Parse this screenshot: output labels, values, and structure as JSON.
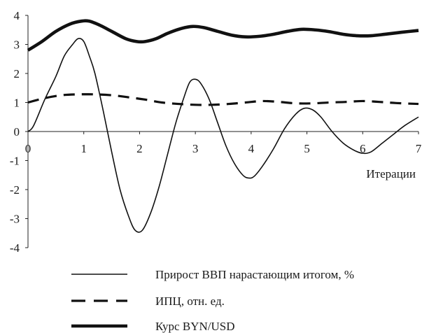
{
  "chart_data": {
    "type": "line",
    "title": "",
    "xlabel": "Итерации",
    "ylabel": "",
    "xlim": [
      0,
      7
    ],
    "ylim": [
      -4,
      4
    ],
    "x_ticks": [
      "0",
      "1",
      "2",
      "3",
      "4",
      "5",
      "6",
      "7"
    ],
    "y_ticks": [
      "4",
      "3",
      "2",
      "1",
      "0",
      "-1",
      "-2",
      "-3",
      "-4"
    ],
    "grid": false,
    "legend_position": "bottom",
    "series": [
      {
        "name": "Прирост ВВП нарастающим итогом, %",
        "style": "thin-solid",
        "color": "#111111",
        "x": [
          0,
          0.1,
          0.3,
          0.5,
          0.65,
          0.8,
          0.9,
          1.0,
          1.1,
          1.2,
          1.35,
          1.5,
          1.65,
          1.8,
          1.92,
          2.05,
          2.2,
          2.35,
          2.5,
          2.65,
          2.8,
          2.9,
          3.0,
          3.1,
          3.25,
          3.4,
          3.55,
          3.7,
          3.85,
          3.95,
          4.05,
          4.2,
          4.4,
          4.6,
          4.8,
          4.95,
          5.1,
          5.25,
          5.45,
          5.65,
          5.85,
          6.0,
          6.15,
          6.35,
          6.55,
          6.75,
          7.0
        ],
        "values": [
          0.0,
          0.2,
          1.1,
          1.9,
          2.6,
          3.0,
          3.2,
          3.1,
          2.6,
          2.0,
          0.7,
          -0.7,
          -2.0,
          -2.9,
          -3.4,
          -3.4,
          -2.8,
          -1.9,
          -0.8,
          0.3,
          1.2,
          1.7,
          1.8,
          1.65,
          1.1,
          0.3,
          -0.5,
          -1.1,
          -1.5,
          -1.6,
          -1.55,
          -1.2,
          -0.6,
          0.1,
          0.6,
          0.8,
          0.75,
          0.5,
          0.0,
          -0.4,
          -0.65,
          -0.75,
          -0.7,
          -0.4,
          -0.1,
          0.2,
          0.5
        ]
      },
      {
        "name": "ИПЦ, отн. ед.",
        "style": "dashed",
        "color": "#111111",
        "x": [
          0,
          0.3,
          0.6,
          0.9,
          1.2,
          1.5,
          1.8,
          2.1,
          2.4,
          2.7,
          3.0,
          3.3,
          3.6,
          3.9,
          4.2,
          4.5,
          4.8,
          5.1,
          5.4,
          5.7,
          6.0,
          6.3,
          6.6,
          7.0
        ],
        "values": [
          1.0,
          1.15,
          1.25,
          1.28,
          1.28,
          1.25,
          1.18,
          1.1,
          1.0,
          0.95,
          0.92,
          0.92,
          0.95,
          1.0,
          1.05,
          1.02,
          0.97,
          0.97,
          1.0,
          1.02,
          1.05,
          1.02,
          0.98,
          0.95
        ]
      },
      {
        "name": "Курс BYN/USD",
        "style": "thick-solid",
        "color": "#111111",
        "x": [
          0,
          0.25,
          0.5,
          0.75,
          0.95,
          1.1,
          1.3,
          1.5,
          1.75,
          1.95,
          2.1,
          2.3,
          2.5,
          2.75,
          2.95,
          3.15,
          3.4,
          3.65,
          3.9,
          4.15,
          4.4,
          4.65,
          4.9,
          5.15,
          5.4,
          5.65,
          5.9,
          6.15,
          6.4,
          6.7,
          7.0
        ],
        "values": [
          2.8,
          3.1,
          3.45,
          3.7,
          3.8,
          3.8,
          3.65,
          3.45,
          3.2,
          3.1,
          3.1,
          3.2,
          3.38,
          3.55,
          3.62,
          3.58,
          3.45,
          3.32,
          3.26,
          3.28,
          3.35,
          3.45,
          3.52,
          3.5,
          3.44,
          3.35,
          3.3,
          3.3,
          3.35,
          3.42,
          3.48
        ]
      }
    ]
  }
}
